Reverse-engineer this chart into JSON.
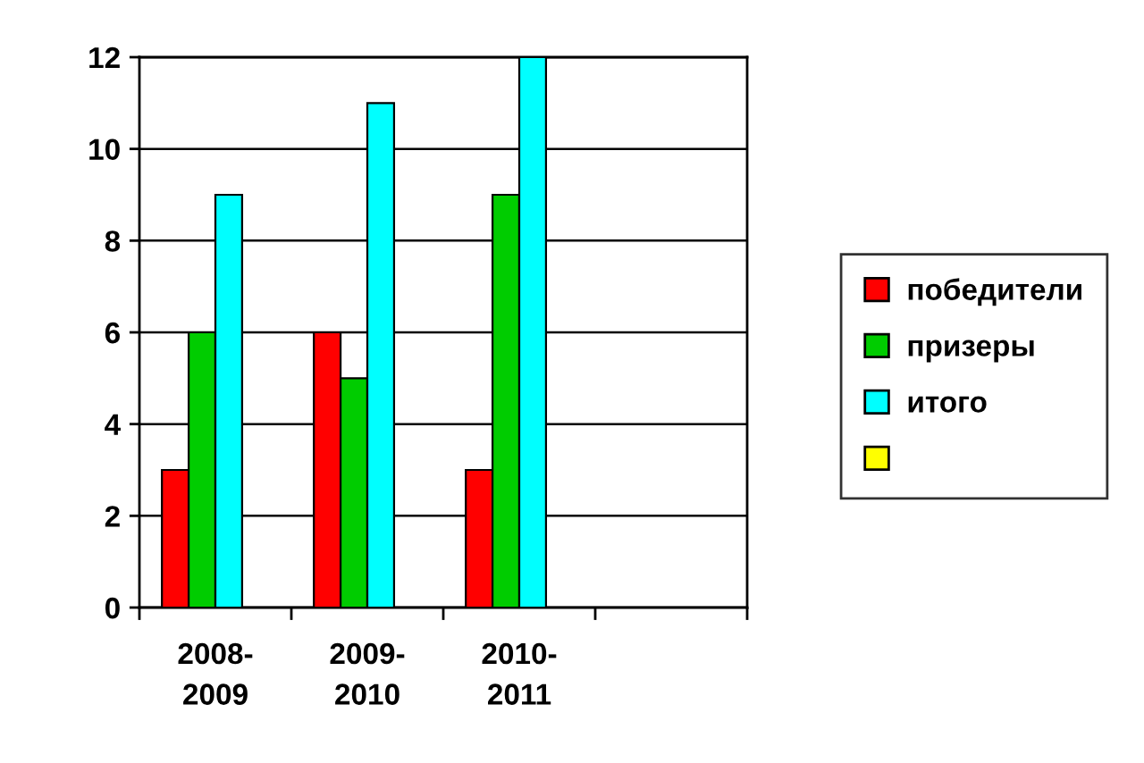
{
  "chart_data": {
    "type": "bar",
    "categories": [
      "2008-\n2009",
      "2009-\n2010",
      "2010-\n2011",
      null
    ],
    "series": [
      {
        "name": "победители",
        "color": "#ff0000",
        "values": [
          3,
          6,
          3,
          null
        ]
      },
      {
        "name": "призеры",
        "color": "#00cc00",
        "values": [
          6,
          5,
          9,
          null
        ]
      },
      {
        "name": "итого",
        "color": "#00ffff",
        "values": [
          9,
          11,
          12,
          null
        ]
      },
      {
        "color": "#ffff00",
        "values": [
          null,
          null,
          null,
          null
        ]
      }
    ],
    "ylim": [
      0,
      12
    ],
    "yticks": [
      0,
      2,
      4,
      6,
      8,
      10,
      12
    ],
    "grid": "y",
    "legend": "right"
  }
}
